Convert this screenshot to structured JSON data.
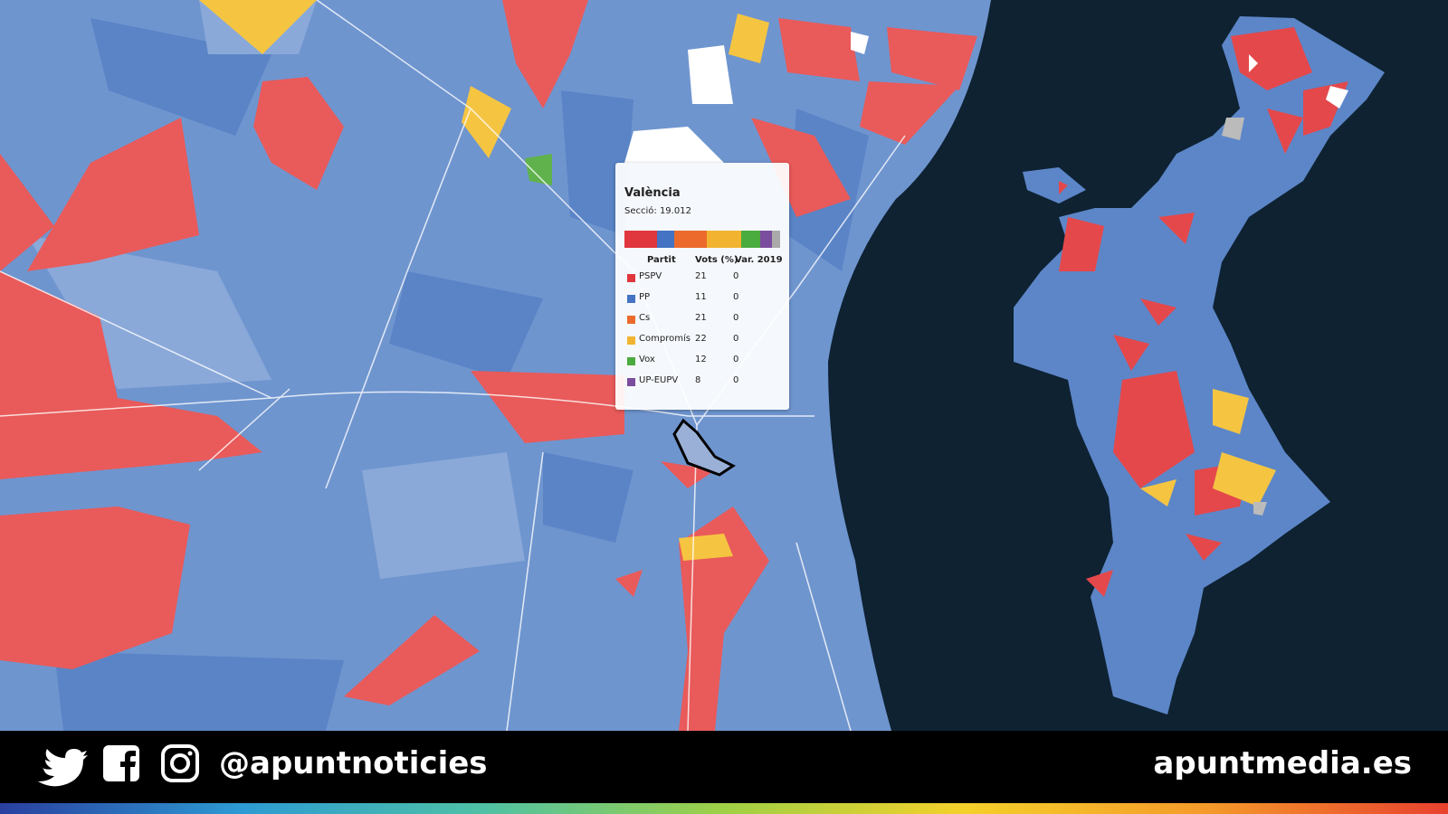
{
  "tooltip": {
    "title": "València",
    "subtitle": "Secció: 19.012",
    "columns": [
      "Partit",
      "Vots (%)",
      "Var. 2019"
    ],
    "rows": [
      {
        "party": "PSPV",
        "color": "#e0363d",
        "votes": 21,
        "change": 0
      },
      {
        "party": "PP",
        "color": "#4373c2",
        "votes": 11,
        "change": 0
      },
      {
        "party": "Cs",
        "color": "#ec6a2c",
        "votes": 21,
        "change": 0
      },
      {
        "party": "Compromís",
        "color": "#f2b430",
        "votes": 22,
        "change": 0
      },
      {
        "party": "Vox",
        "color": "#4aab3e",
        "votes": 12,
        "change": 0
      },
      {
        "party": "UP-EUPV",
        "color": "#7b4d9e",
        "votes": 8,
        "change": 0
      }
    ]
  },
  "footer": {
    "handle": "@apuntnoticies",
    "site": "apuntmedia.es"
  }
}
